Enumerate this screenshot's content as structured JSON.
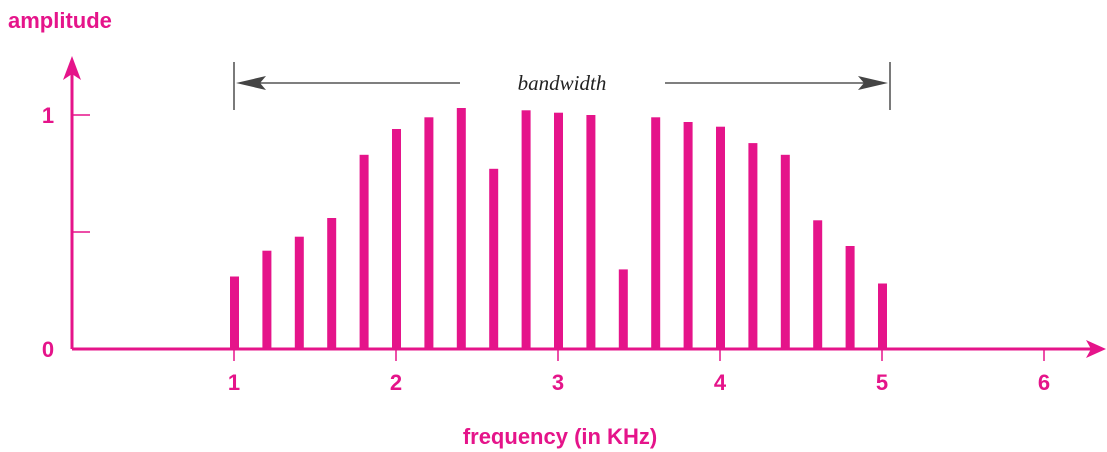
{
  "colors": {
    "accent": "#e5148a",
    "annotation": "#333333"
  },
  "chart_data": {
    "type": "bar",
    "title": "",
    "ylabel": "amplitude",
    "xlabel": "frequency (in KHz)",
    "xlim": [
      0,
      6.4
    ],
    "ylim": [
      0,
      1.15
    ],
    "x_ticks": [
      {
        "value": 1,
        "label": "1"
      },
      {
        "value": 2,
        "label": "2"
      },
      {
        "value": 3,
        "label": "3"
      },
      {
        "value": 4,
        "label": "4"
      },
      {
        "value": 5,
        "label": "5"
      },
      {
        "value": 6,
        "label": "6"
      }
    ],
    "y_ticks": [
      {
        "value": 0,
        "label": "0"
      },
      {
        "value": 0.5,
        "label": ""
      },
      {
        "value": 1,
        "label": "1"
      }
    ],
    "grid": false,
    "legend": "none",
    "x": [
      1.0,
      1.2,
      1.4,
      1.6,
      1.8,
      2.0,
      2.2,
      2.4,
      2.6,
      2.8,
      3.0,
      3.2,
      3.4,
      3.6,
      3.8,
      4.0,
      4.2,
      4.4,
      4.6,
      4.8,
      5.0
    ],
    "values": [
      0.31,
      0.42,
      0.48,
      0.56,
      0.83,
      0.94,
      0.99,
      1.03,
      0.77,
      1.02,
      1.01,
      1.0,
      0.34,
      0.99,
      0.97,
      0.95,
      0.88,
      0.83,
      0.55,
      0.44,
      0.28
    ],
    "annotation": {
      "label": "bandwidth",
      "from": 1,
      "to": 5
    }
  }
}
